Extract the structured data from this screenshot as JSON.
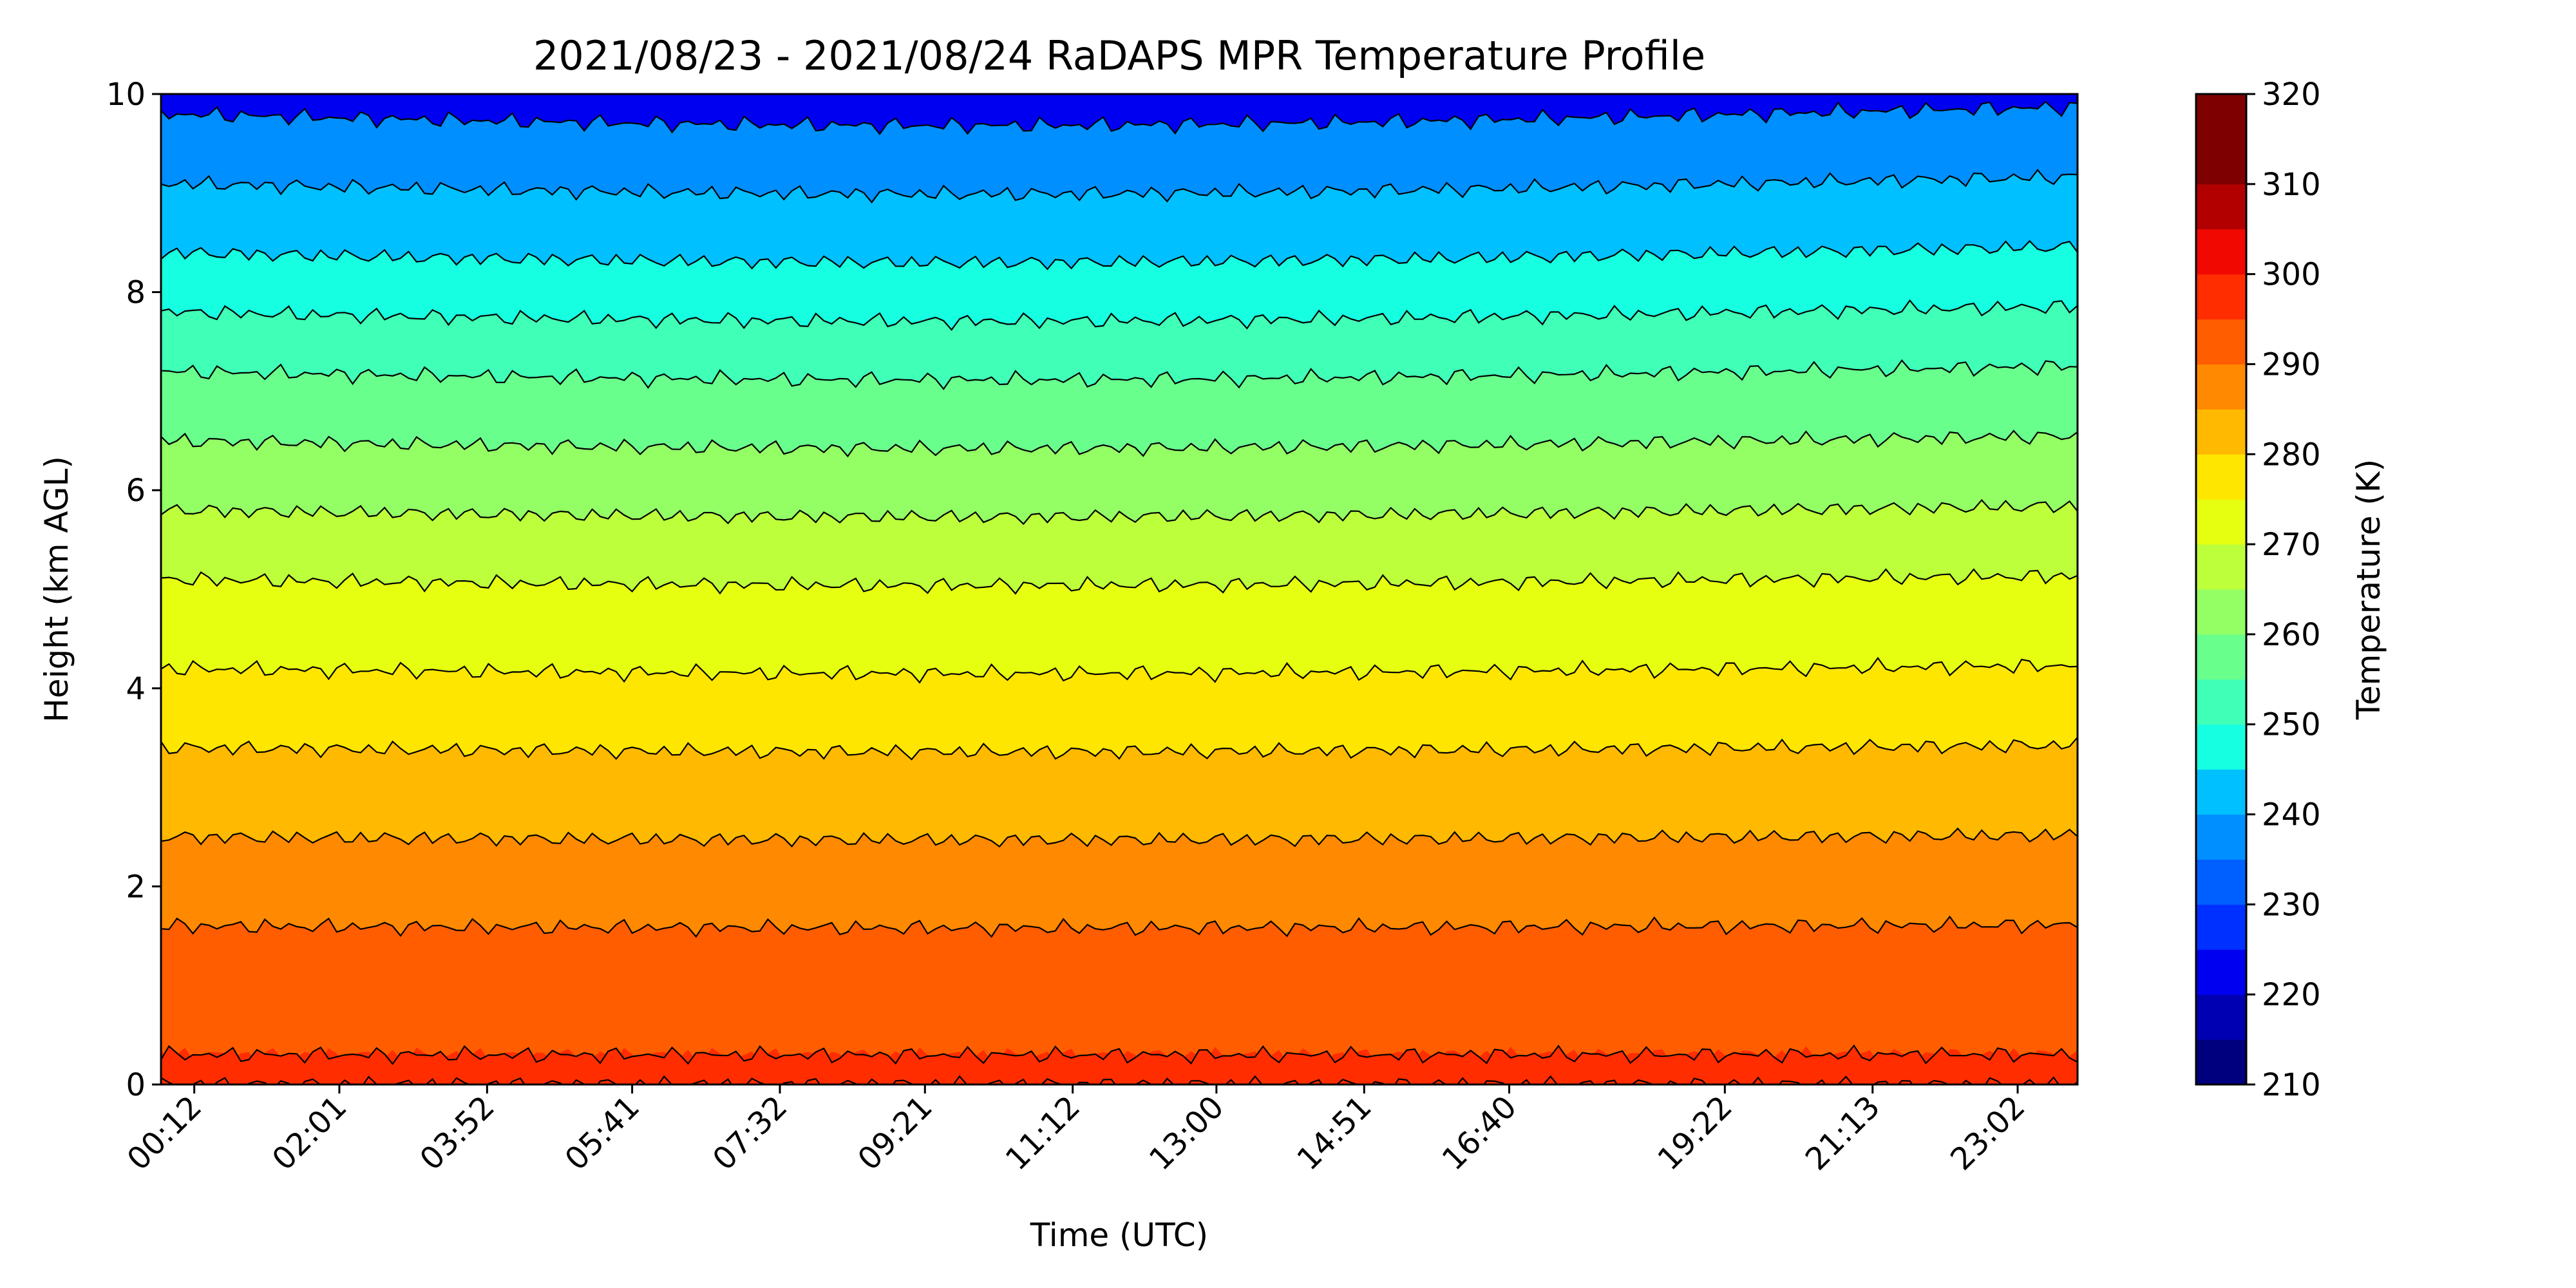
{
  "chart_data": {
    "type": "contourf",
    "title": "2021/08/23 - 2021/08/24 RaDAPS MPR Temperature Profile",
    "xlabel": "Time (UTC)",
    "ylabel": "Height (km AGL)",
    "ylim": [
      0,
      10
    ],
    "yticks": [
      "0",
      "2",
      "4",
      "6",
      "8",
      "10"
    ],
    "xticks": [
      "00:12",
      "02:01",
      "03:52",
      "05:41",
      "07:32",
      "09:21",
      "11:12",
      "13:00",
      "14:51",
      "16:40",
      "19:22",
      "21:13",
      "23:02"
    ],
    "colorbar": {
      "label": "Temperature (K)",
      "range": [
        210,
        320
      ],
      "step": 5,
      "ticks": [
        "210",
        "220",
        "230",
        "240",
        "250",
        "260",
        "270",
        "280",
        "290",
        "300",
        "310",
        "320"
      ],
      "colors": [
        "#00007f",
        "#0000b2",
        "#0000f1",
        "#0030ff",
        "#0060ff",
        "#008fff",
        "#00c0ff",
        "#16ffe1",
        "#40ffb7",
        "#69ff8d",
        "#93ff64",
        "#bcff3a",
        "#e6ff11",
        "#ffe600",
        "#ffb900",
        "#ff8900",
        "#ff5d00",
        "#ff2d00",
        "#f10800",
        "#b20000",
        "#7f0000",
        "#7f0000"
      ]
    },
    "contour_levels_k": [
      225,
      230,
      235,
      240,
      245,
      250,
      255,
      260,
      265,
      270,
      275,
      280,
      285,
      290,
      295,
      300
    ],
    "profile": {
      "heights_km": [
        0.0,
        0.3,
        1.0,
        1.6,
        2.5,
        3.4,
        4.2,
        5.1,
        5.8,
        6.5,
        7.2,
        7.8,
        8.4,
        9.1,
        9.8,
        10.0
      ],
      "temperature_k": [
        300,
        295,
        295,
        290,
        285,
        280,
        275,
        270,
        265,
        260,
        255,
        250,
        245,
        240,
        235,
        232
      ]
    },
    "grid": false
  }
}
